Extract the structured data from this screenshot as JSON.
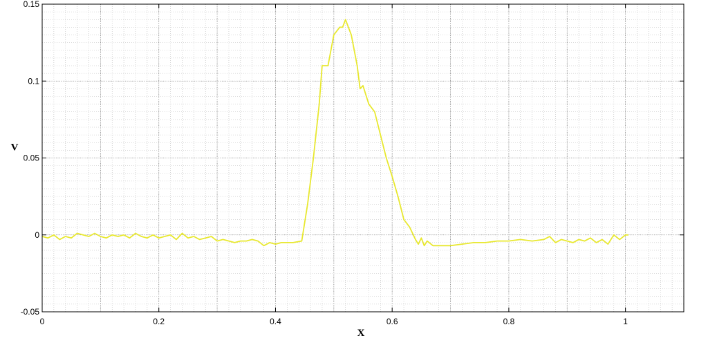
{
  "chart_data": {
    "type": "line",
    "title": "",
    "xlabel": "X",
    "ylabel": "V",
    "xlim": [
      0,
      1.1
    ],
    "ylim": [
      -0.05,
      0.15
    ],
    "x_ticks": [
      0,
      0.2,
      0.4,
      0.6,
      0.8,
      1
    ],
    "x_tick_labels": [
      "0",
      "0.2",
      "0.4",
      "0.6",
      "0.8",
      "1"
    ],
    "y_ticks": [
      -0.05,
      0,
      0.05,
      0.1,
      0.15
    ],
    "y_tick_labels": [
      "-0.05",
      "0",
      "0.05",
      "0.1",
      "0.15"
    ],
    "grid": true,
    "minor_grid": true,
    "series": [
      {
        "color": "#e8e830",
        "x": [
          0,
          0.01,
          0.02,
          0.03,
          0.04,
          0.05,
          0.06,
          0.07,
          0.08,
          0.09,
          0.1,
          0.11,
          0.12,
          0.13,
          0.14,
          0.15,
          0.16,
          0.17,
          0.18,
          0.19,
          0.2,
          0.21,
          0.22,
          0.23,
          0.24,
          0.25,
          0.26,
          0.27,
          0.28,
          0.29,
          0.3,
          0.31,
          0.32,
          0.33,
          0.34,
          0.35,
          0.36,
          0.37,
          0.38,
          0.39,
          0.4,
          0.41,
          0.42,
          0.43,
          0.445,
          0.455,
          0.465,
          0.475,
          0.48,
          0.49,
          0.5,
          0.51,
          0.515,
          0.52,
          0.525,
          0.53,
          0.54,
          0.545,
          0.55,
          0.56,
          0.57,
          0.58,
          0.59,
          0.6,
          0.61,
          0.62,
          0.63,
          0.64,
          0.645,
          0.65,
          0.655,
          0.66,
          0.67,
          0.68,
          0.7,
          0.72,
          0.74,
          0.76,
          0.78,
          0.8,
          0.82,
          0.84,
          0.86,
          0.87,
          0.88,
          0.89,
          0.9,
          0.91,
          0.92,
          0.93,
          0.94,
          0.95,
          0.96,
          0.97,
          0.98,
          0.99,
          1,
          1.005
        ],
        "y": [
          -0.001,
          -0.002,
          0.0,
          -0.003,
          -0.001,
          -0.002,
          0.001,
          0.0,
          -0.001,
          0.001,
          -0.001,
          -0.002,
          0.0,
          -0.001,
          0.0,
          -0.002,
          0.001,
          -0.001,
          -0.002,
          0.0,
          -0.002,
          -0.001,
          0.0,
          -0.003,
          0.001,
          -0.002,
          -0.001,
          -0.003,
          -0.002,
          -0.001,
          -0.004,
          -0.003,
          -0.004,
          -0.005,
          -0.004,
          -0.004,
          -0.003,
          -0.004,
          -0.007,
          -0.005,
          -0.006,
          -0.005,
          -0.005,
          -0.005,
          -0.004,
          0.02,
          0.05,
          0.085,
          0.11,
          0.11,
          0.13,
          0.135,
          0.135,
          0.14,
          0.135,
          0.13,
          0.11,
          0.095,
          0.097,
          0.085,
          0.08,
          0.065,
          0.05,
          0.038,
          0.025,
          0.01,
          0.005,
          -0.003,
          -0.006,
          -0.002,
          -0.007,
          -0.004,
          -0.007,
          -0.007,
          -0.007,
          -0.006,
          -0.005,
          -0.005,
          -0.004,
          -0.004,
          -0.003,
          -0.004,
          -0.003,
          -0.001,
          -0.005,
          -0.003,
          -0.004,
          -0.005,
          -0.003,
          -0.004,
          -0.002,
          -0.005,
          -0.003,
          -0.006,
          0.0,
          -0.003,
          0.0,
          0.0
        ]
      }
    ]
  }
}
